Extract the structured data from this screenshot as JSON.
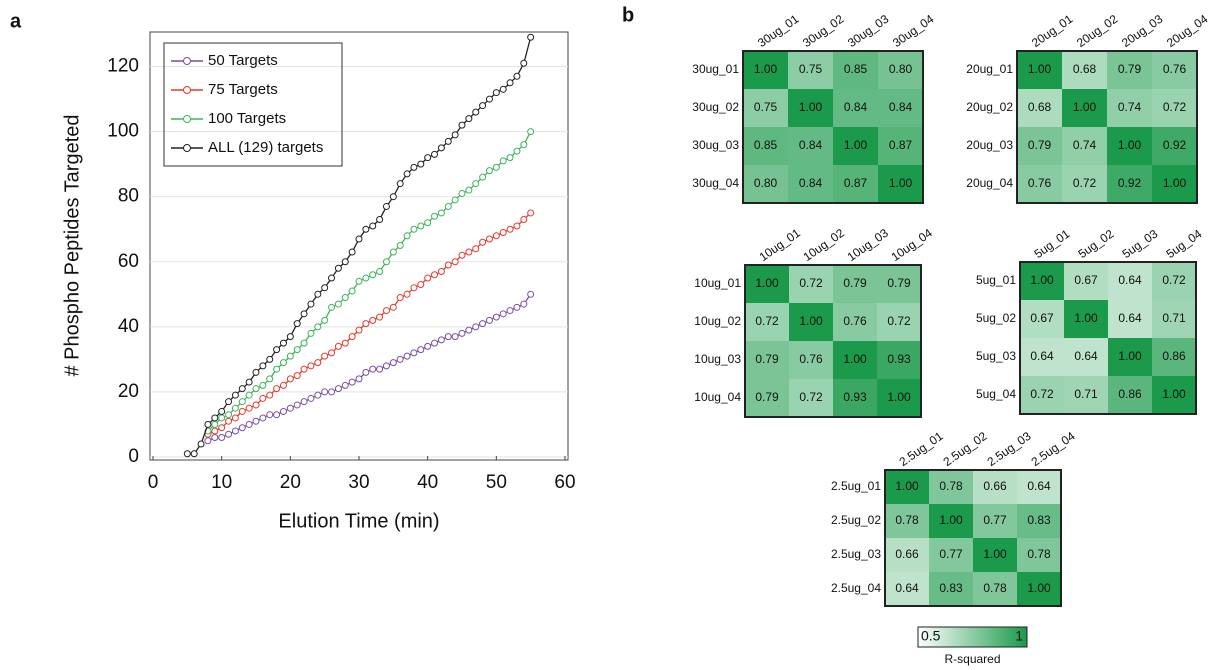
{
  "chart_data": [
    {
      "type": "line",
      "panel": "a",
      "xlabel": "Elution Time (min)",
      "ylabel": "# Phospho Peptides Targeted",
      "xlim": [
        0,
        60
      ],
      "ylim": [
        0,
        130
      ],
      "xticks": [
        0,
        10,
        20,
        30,
        40,
        50,
        60
      ],
      "yticks": [
        0,
        20,
        40,
        60,
        80,
        100,
        120
      ],
      "legend": "upper left",
      "x": [
        5,
        6,
        7,
        8,
        9,
        10,
        11,
        12,
        13,
        14,
        15,
        16,
        17,
        18,
        19,
        20,
        21,
        22,
        23,
        24,
        25,
        26,
        27,
        28,
        29,
        30,
        31,
        32,
        33,
        34,
        35,
        36,
        37,
        38,
        39,
        40,
        41,
        42,
        43,
        44,
        45,
        46,
        47,
        48,
        49,
        50,
        51,
        52,
        53,
        54,
        55
      ],
      "series": [
        {
          "name": "50 Targets",
          "color": "#7b4ea3",
          "values": [
            null,
            null,
            null,
            5,
            6,
            6,
            7,
            8,
            9,
            10,
            11,
            12,
            13,
            13,
            14,
            15,
            16,
            17,
            18,
            19,
            20,
            20,
            21,
            22,
            23,
            24,
            26,
            27,
            27,
            28,
            29,
            30,
            31,
            32,
            33,
            34,
            35,
            36,
            37,
            37,
            38,
            39,
            40,
            41,
            42,
            43,
            44,
            45,
            46,
            47,
            50
          ]
        },
        {
          "name": "75 Targets",
          "color": "#e8392f",
          "values": [
            null,
            null,
            null,
            7,
            8,
            9,
            11,
            12,
            14,
            15,
            16,
            18,
            19,
            21,
            22,
            24,
            25,
            27,
            28,
            29,
            31,
            32,
            34,
            35,
            37,
            39,
            41,
            42,
            43,
            45,
            46,
            49,
            50,
            52,
            53,
            55,
            56,
            57,
            59,
            60,
            62,
            63,
            64,
            66,
            67,
            68,
            69,
            70,
            71,
            73,
            75
          ]
        },
        {
          "name": "100 Targets",
          "color": "#3cb55a",
          "values": [
            null,
            null,
            null,
            8,
            10,
            12,
            13,
            15,
            17,
            19,
            21,
            22,
            24,
            27,
            29,
            31,
            33,
            35,
            38,
            40,
            42,
            46,
            47,
            49,
            51,
            54,
            55,
            56,
            57,
            60,
            63,
            65,
            68,
            70,
            71,
            72,
            74,
            75,
            77,
            79,
            81,
            82,
            84,
            86,
            88,
            89,
            91,
            92,
            94,
            96,
            100
          ]
        },
        {
          "name": "ALL (129) targets",
          "color": "#222222",
          "values": [
            1,
            1,
            4,
            10,
            12,
            14,
            17,
            19,
            21,
            23,
            26,
            28,
            30,
            33,
            35,
            37,
            41,
            44,
            47,
            50,
            52,
            55,
            58,
            60,
            63,
            67,
            70,
            71,
            73,
            77,
            80,
            84,
            87,
            89,
            90,
            92,
            93,
            95,
            97,
            99,
            102,
            104,
            106,
            108,
            110,
            112,
            113,
            115,
            117,
            121,
            129
          ]
        }
      ]
    },
    {
      "type": "heatmap",
      "panel": "b",
      "rows": [
        "30ug_01",
        "30ug_02",
        "30ug_03",
        "30ug_04"
      ],
      "columns": [
        "30ug_01",
        "30ug_02",
        "30ug_03",
        "30ug_04"
      ],
      "values": [
        [
          1,
          0.75,
          0.85,
          0.8
        ],
        [
          0.75,
          1,
          0.84,
          0.84
        ],
        [
          0.85,
          0.84,
          1,
          0.87
        ],
        [
          0.8,
          0.84,
          0.87,
          1
        ]
      ],
      "value_labels": [
        [
          "1.00",
          "0.75",
          "0.85",
          "0.80"
        ],
        [
          "0.75",
          "1.00",
          "0.84",
          "0.84"
        ],
        [
          "0.85",
          "0.84",
          "1.00",
          "0.87"
        ],
        [
          "0.80",
          "0.84",
          "0.87",
          "1.00"
        ]
      ]
    },
    {
      "type": "heatmap",
      "rows": [
        "20ug_01",
        "20ug_02",
        "20ug_03",
        "20ug_04"
      ],
      "columns": [
        "20ug_01",
        "20ug_02",
        "20ug_03",
        "20ug_04"
      ],
      "values": [
        [
          1,
          0.68,
          0.79,
          0.76
        ],
        [
          0.68,
          1,
          0.74,
          0.72
        ],
        [
          0.79,
          0.74,
          1,
          0.92
        ],
        [
          0.76,
          0.72,
          0.92,
          1
        ]
      ],
      "value_labels": [
        [
          "1.00",
          "0.68",
          "0.79",
          "0.76"
        ],
        [
          "0.68",
          "1.00",
          "0.74",
          "0.72"
        ],
        [
          "0.79",
          "0.74",
          "1.00",
          "0.92"
        ],
        [
          "0.76",
          "0.72",
          "0.92",
          "1.00"
        ]
      ]
    },
    {
      "type": "heatmap",
      "rows": [
        "10ug_01",
        "10ug_02",
        "10ug_03",
        "10ug_04"
      ],
      "columns": [
        "10ug_01",
        "10ug_02",
        "10ug_03",
        "10ug_04"
      ],
      "values": [
        [
          1,
          0.72,
          0.79,
          0.79
        ],
        [
          0.72,
          1,
          0.76,
          0.72
        ],
        [
          0.79,
          0.76,
          1,
          0.93
        ],
        [
          0.79,
          0.72,
          0.93,
          1
        ]
      ],
      "value_labels": [
        [
          "1.00",
          "0.72",
          "0.79",
          "0.79"
        ],
        [
          "0.72",
          "1.00",
          "0.76",
          "0.72"
        ],
        [
          "0.79",
          "0.76",
          "1.00",
          "0.93"
        ],
        [
          "0.79",
          "0.72",
          "0.93",
          "1.00"
        ]
      ]
    },
    {
      "type": "heatmap",
      "rows": [
        "5ug_01",
        "5ug_02",
        "5ug_03",
        "5ug_04"
      ],
      "columns": [
        "5ug_01",
        "5ug_02",
        "5ug_03",
        "5ug_04"
      ],
      "values": [
        [
          1,
          0.67,
          0.64,
          0.72
        ],
        [
          0.67,
          1,
          0.64,
          0.71
        ],
        [
          0.64,
          0.64,
          1,
          0.86
        ],
        [
          0.72,
          0.71,
          0.86,
          1
        ]
      ],
      "value_labels": [
        [
          "1.00",
          "0.67",
          "0.64",
          "0.72"
        ],
        [
          "0.67",
          "1.00",
          "0.64",
          "0.71"
        ],
        [
          "0.64",
          "0.64",
          "1.00",
          "0.86"
        ],
        [
          "0.72",
          "0.71",
          "0.86",
          "1.00"
        ]
      ]
    },
    {
      "type": "heatmap",
      "rows": [
        "2.5ug_01",
        "2.5ug_02",
        "2.5ug_03",
        "2.5ug_04"
      ],
      "columns": [
        "2.5ug_01",
        "2.5ug_02",
        "2.5ug_03",
        "2.5ug_04"
      ],
      "values": [
        [
          1,
          0.78,
          0.66,
          0.64
        ],
        [
          0.78,
          1,
          0.77,
          0.83
        ],
        [
          0.66,
          0.77,
          1,
          0.78
        ],
        [
          0.64,
          0.83,
          0.78,
          1
        ]
      ],
      "value_labels": [
        [
          "1.00",
          "0.78",
          "0.66",
          "0.64"
        ],
        [
          "0.78",
          "1.00",
          "0.77",
          "0.83"
        ],
        [
          "0.66",
          "0.77",
          "1.00",
          "0.78"
        ],
        [
          "0.64",
          "0.83",
          "0.78",
          "1.00"
        ]
      ]
    },
    {
      "type": "colorbar",
      "label": "R-squared",
      "ticks": [
        0.5,
        1
      ],
      "colors": [
        "#ffffff",
        "#1a9a4a"
      ]
    }
  ]
}
